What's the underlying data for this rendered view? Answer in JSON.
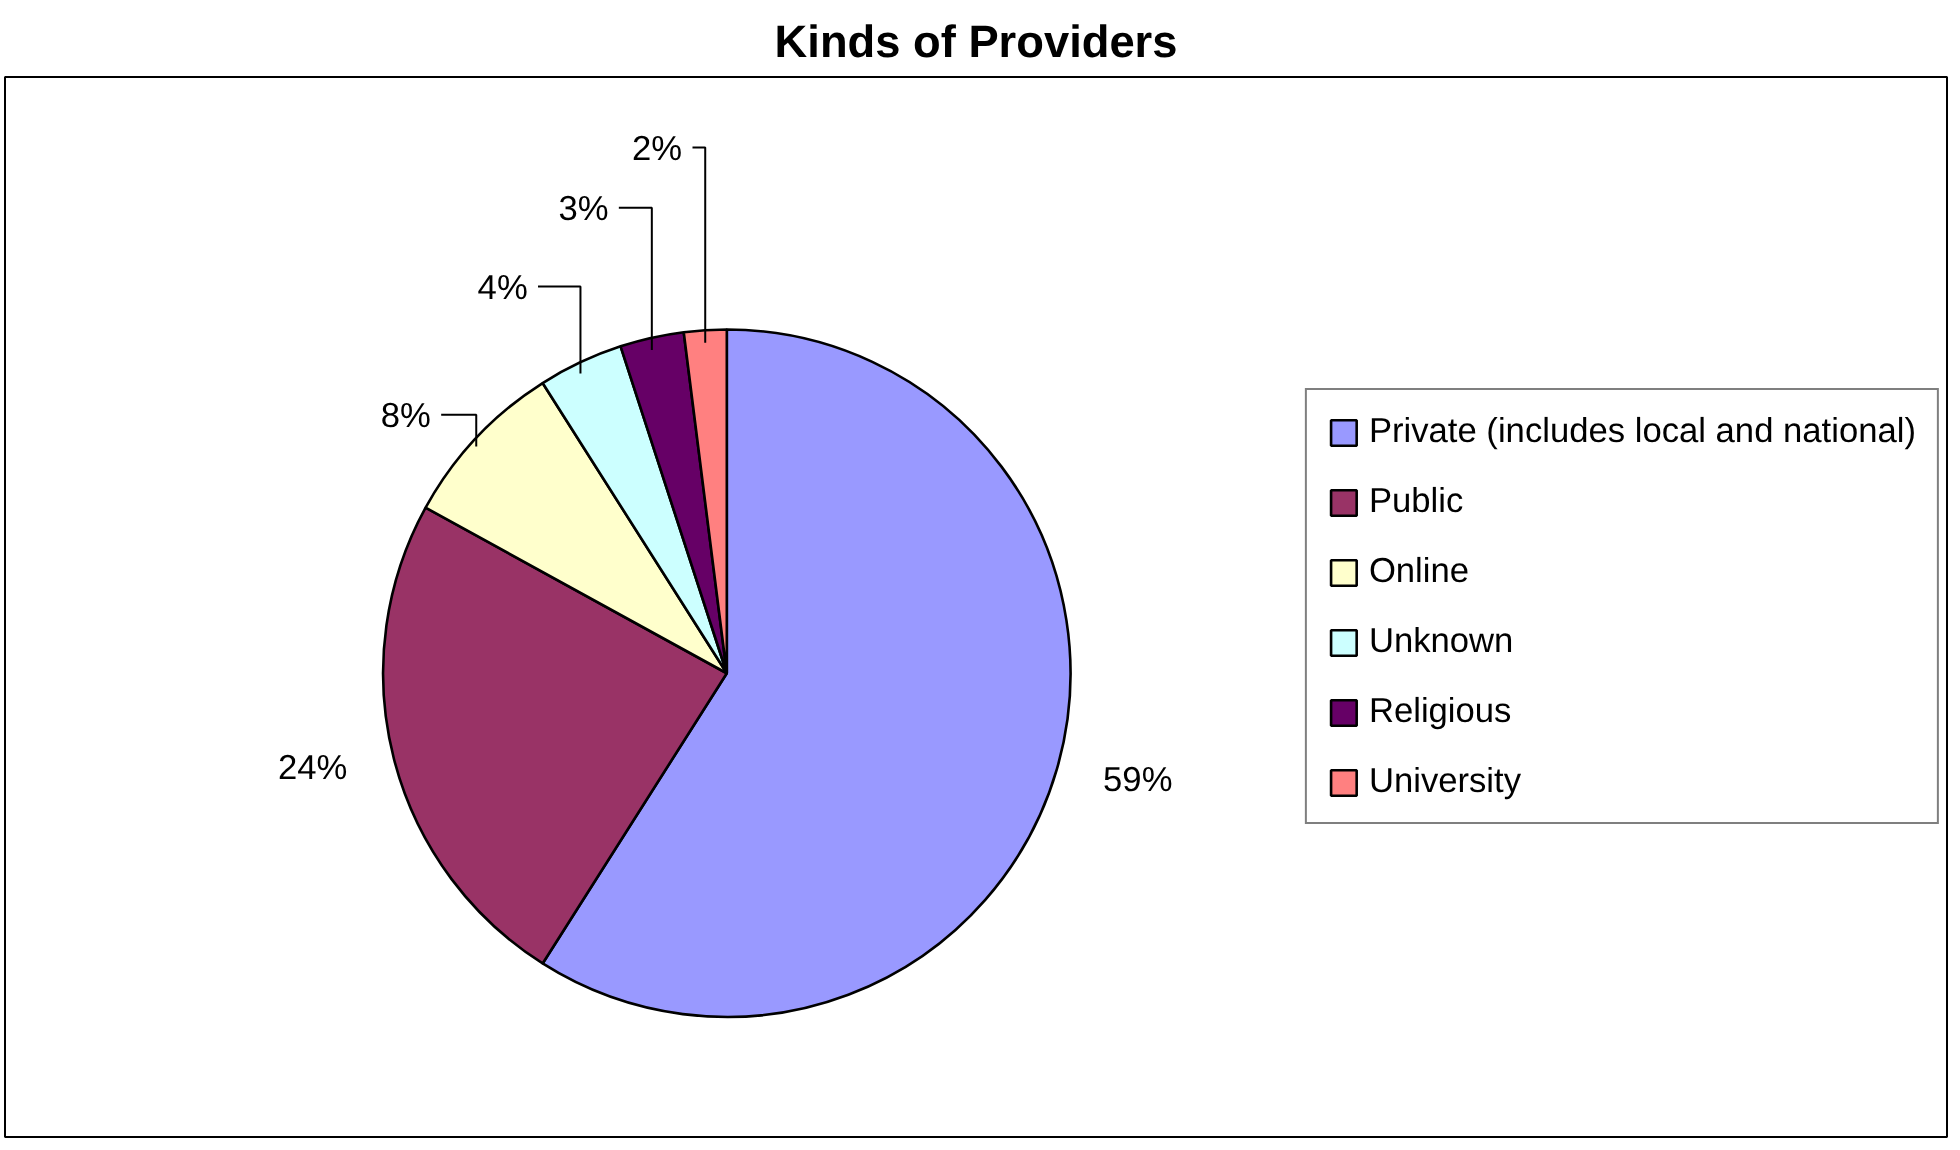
{
  "chart_data": {
    "type": "pie",
    "title": "Kinds of Providers",
    "categories": [
      "Private (includes local and national)",
      "Public",
      "Online",
      "Unknown",
      "Religious",
      "University"
    ],
    "values": [
      59,
      24,
      8,
      4,
      3,
      2
    ],
    "colors": [
      "#9999ff",
      "#993366",
      "#ffffcc",
      "#ccffff",
      "#660066",
      "#ff8080"
    ],
    "value_labels": [
      "59%",
      "24%",
      "8%",
      "4%",
      "3%",
      "2%"
    ],
    "legend": "right"
  }
}
